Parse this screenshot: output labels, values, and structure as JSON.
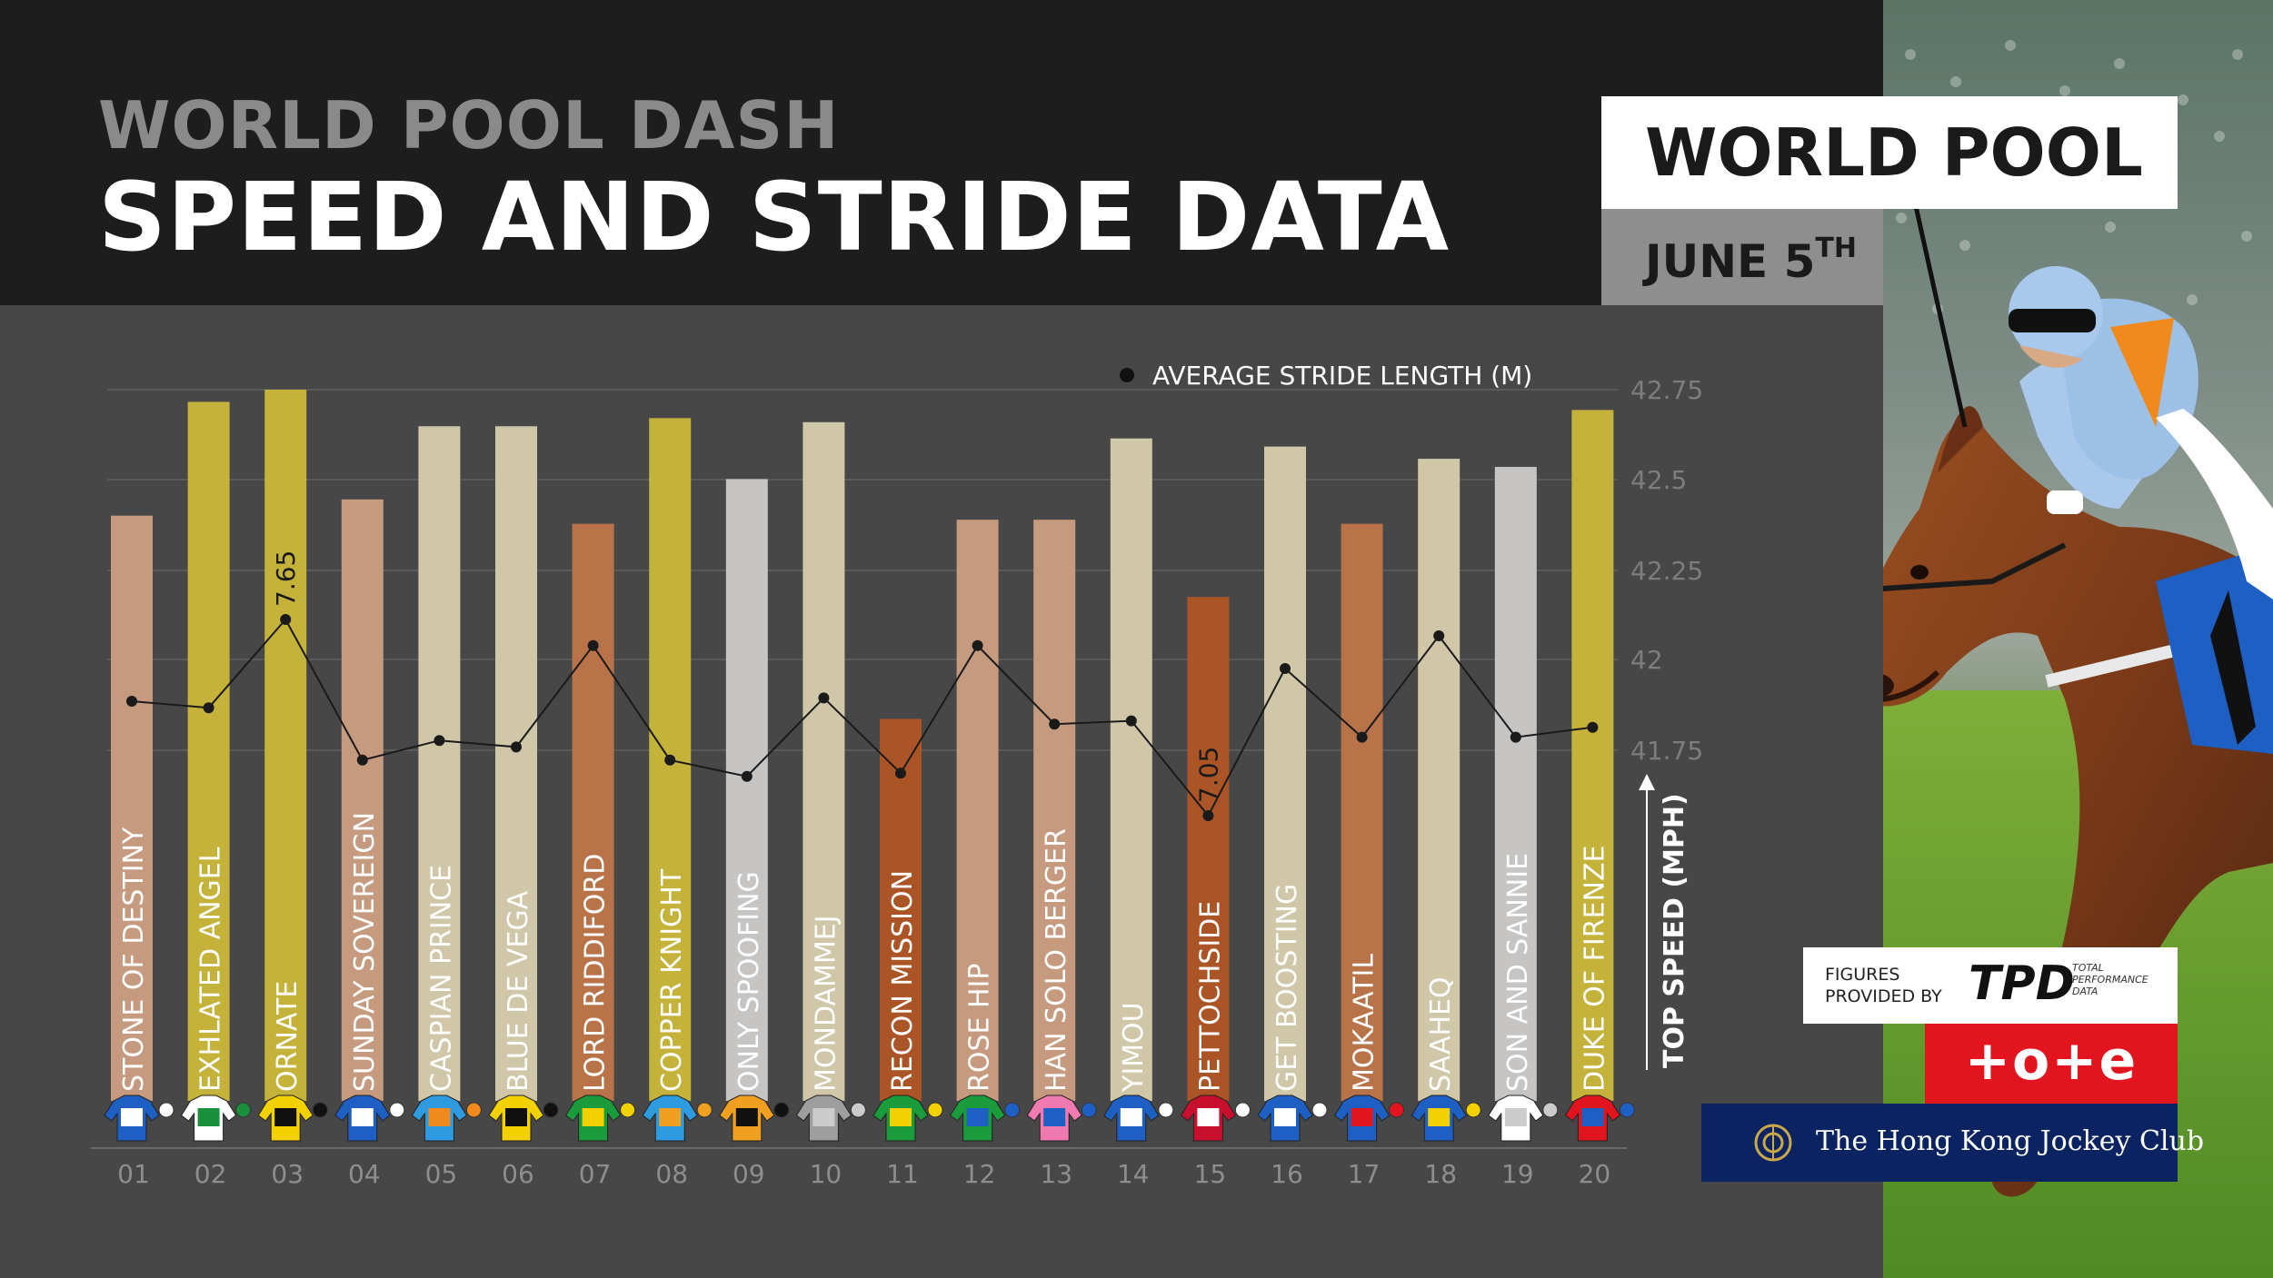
{
  "header": {
    "kicker": "WORLD POOL DASH",
    "title": "SPEED AND STRIDE DATA"
  },
  "brand": {
    "logo_text": "WORLD POOL",
    "date_main": "JUNE 5",
    "date_suffix": "TH"
  },
  "sponsors": {
    "figures_text": "FIGURES PROVIDED BY",
    "tpd_logo": "TPD",
    "tpd_small": "TOTAL PERFORMANCE DATA",
    "tote_logo": "+o+e",
    "hkjc_name": "The Hong Kong Jockey Club"
  },
  "colors": {
    "gold": "#c5b23a",
    "cream": "#cfc7a8",
    "tan": "#c59a7e",
    "bronze": "#b87349",
    "orange": "#ab5426",
    "silver": "#c7c5c3"
  },
  "chart_data": {
    "type": "bar",
    "categories": [
      "01",
      "02",
      "03",
      "04",
      "05",
      "06",
      "07",
      "08",
      "09",
      "10",
      "11",
      "12",
      "13",
      "14",
      "15",
      "16",
      "17",
      "18",
      "19",
      "20"
    ],
    "horses": [
      "STONE OF DESTINY",
      "EXHLATED ANGEL",
      "ORNATE",
      "SUNDAY SOVEREIGN",
      "CASPIAN PRINCE",
      "BLUE DE VEGA",
      "LORD RIDDIFORD",
      "COPPER KNIGHT",
      "ONLY SPOOFING",
      "MONDAMMEJ",
      "RECON MISSION",
      "ROSE HIP",
      "HAN SOLO BERGER",
      "YIMOU",
      "PETTOCHSIDE",
      "GET BOOSTING",
      "MOKAATIL",
      "SAAHEQ",
      "SON AND SANNIE",
      "DUKE OF FIRENZE"
    ],
    "series": [
      {
        "name": "TOP SPEED (MPH)",
        "values": [
          42.44,
          42.72,
          42.75,
          42.48,
          42.66,
          42.66,
          42.42,
          42.68,
          42.53,
          42.67,
          41.94,
          42.43,
          42.43,
          42.63,
          42.24,
          42.61,
          42.42,
          42.58,
          42.56,
          42.7
        ]
      },
      {
        "name": "AVERAGE STRIDE LENGTH (M)",
        "values": [
          7.4,
          7.38,
          7.65,
          7.22,
          7.28,
          7.26,
          7.57,
          7.22,
          7.17,
          7.41,
          7.18,
          7.57,
          7.33,
          7.34,
          7.05,
          7.5,
          7.29,
          7.6,
          7.29,
          7.32
        ]
      }
    ],
    "bar_colors": [
      "#c59a7e",
      "#c5b23a",
      "#c5b23a",
      "#c59a7e",
      "#cfc7a8",
      "#cfc7a8",
      "#b87349",
      "#c5b23a",
      "#c7c5c3",
      "#cfc7a8",
      "#ab5426",
      "#c59a7e",
      "#c59a7e",
      "#cfc7a8",
      "#ab5426",
      "#cfc7a8",
      "#b87349",
      "#cfc7a8",
      "#c7c5c3",
      "#c5b23a"
    ],
    "silk_colors": [
      [
        "#1e5fc4",
        "#ffffff"
      ],
      [
        "#ffffff",
        "#1a8f3c"
      ],
      [
        "#f2d100",
        "#111111"
      ],
      [
        "#1e5fc4",
        "#ffffff"
      ],
      [
        "#2e9ae0",
        "#f08a1c"
      ],
      [
        "#f2d100",
        "#111111"
      ],
      [
        "#1a9b3c",
        "#f2d100"
      ],
      [
        "#2e9ae0",
        "#f0a020"
      ],
      [
        "#f0a020",
        "#111111"
      ],
      [
        "#9e9e9e",
        "#cccccc"
      ],
      [
        "#1a9b3c",
        "#f2d100"
      ],
      [
        "#1a9b3c",
        "#1e5fc4"
      ],
      [
        "#f07ab0",
        "#1e5fc4"
      ],
      [
        "#1e5fc4",
        "#ffffff"
      ],
      [
        "#c8102e",
        "#ffffff"
      ],
      [
        "#1e5fc4",
        "#ffffff"
      ],
      [
        "#1e5fc4",
        "#e2141d"
      ],
      [
        "#1e5fc4",
        "#f2d100"
      ],
      [
        "#ffffff",
        "#cccccc"
      ],
      [
        "#e2141d",
        "#1e5fc4"
      ]
    ],
    "data_labels": [
      {
        "index": 2,
        "text": "7.65"
      },
      {
        "index": 14,
        "text": "7.05"
      }
    ],
    "y_ticks": [
      "42.75",
      "42.5",
      "42.25",
      "42",
      "41.75"
    ],
    "ylim": [
      41.0,
      42.75
    ],
    "stride_ylim": [
      6.0,
      8.0
    ],
    "ylabel": "TOP SPEED (MPH)",
    "legend_text": "AVERAGE STRIDE LENGTH (M)",
    "legend": "top-right",
    "grid": true
  }
}
